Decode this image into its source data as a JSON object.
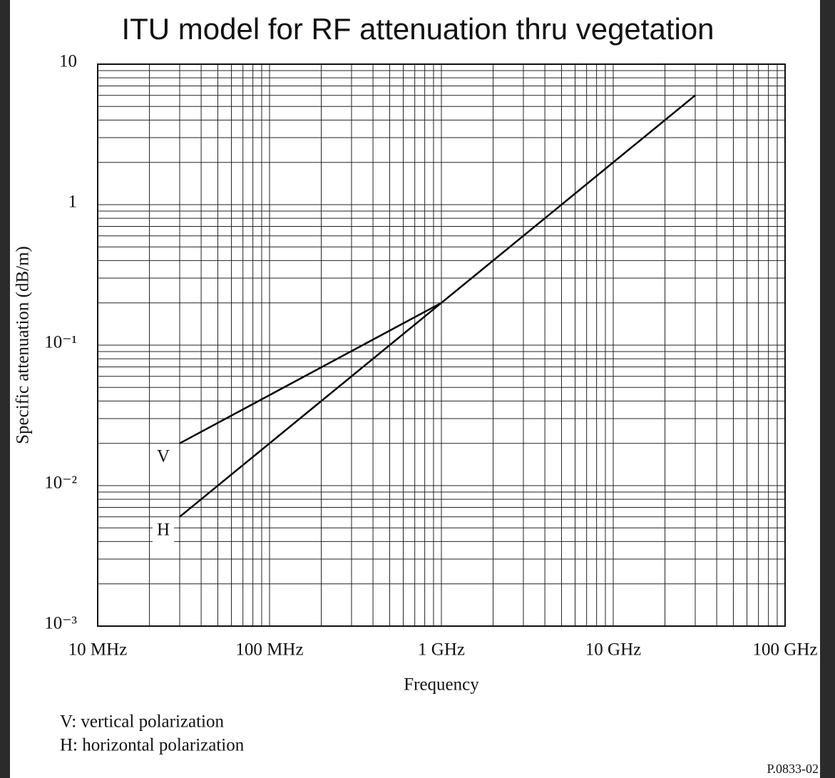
{
  "chart_data": {
    "type": "line",
    "title": "ITU model for RF attenuation thru vegetation",
    "x_label": "Frequency",
    "y_label": "Specific attenuation (dB/m)",
    "x_scale": "log",
    "y_scale": "log",
    "grid": true,
    "minor_grid": true,
    "xlim": [
      10000000,
      100000000000
    ],
    "ylim": [
      0.001,
      10
    ],
    "xticks": [
      {
        "value": 10000000,
        "label": "10 MHz"
      },
      {
        "value": 100000000,
        "label": "100 MHz"
      },
      {
        "value": 1000000000,
        "label": "1 GHz"
      },
      {
        "value": 10000000000,
        "label": "10 GHz"
      },
      {
        "value": 100000000000,
        "label": "100 GHz"
      }
    ],
    "yticks": [
      {
        "value": 0.001,
        "label": "10⁻³"
      },
      {
        "value": 0.01,
        "label": "10⁻²"
      },
      {
        "value": 0.1,
        "label": "10⁻¹"
      },
      1,
      10
    ],
    "series": [
      {
        "name": "V",
        "color": "#000000",
        "x": [
          30000000,
          1000000000
        ],
        "values": [
          0.02,
          0.2
        ]
      },
      {
        "name": "H",
        "color": "#000000",
        "x": [
          30000000,
          1000000000,
          30000000000
        ],
        "values": [
          0.006,
          0.2,
          6
        ]
      }
    ],
    "notes": [
      "V: vertical polarization",
      "H: horizontal polarization"
    ],
    "figure_id": "P.0833-02"
  }
}
